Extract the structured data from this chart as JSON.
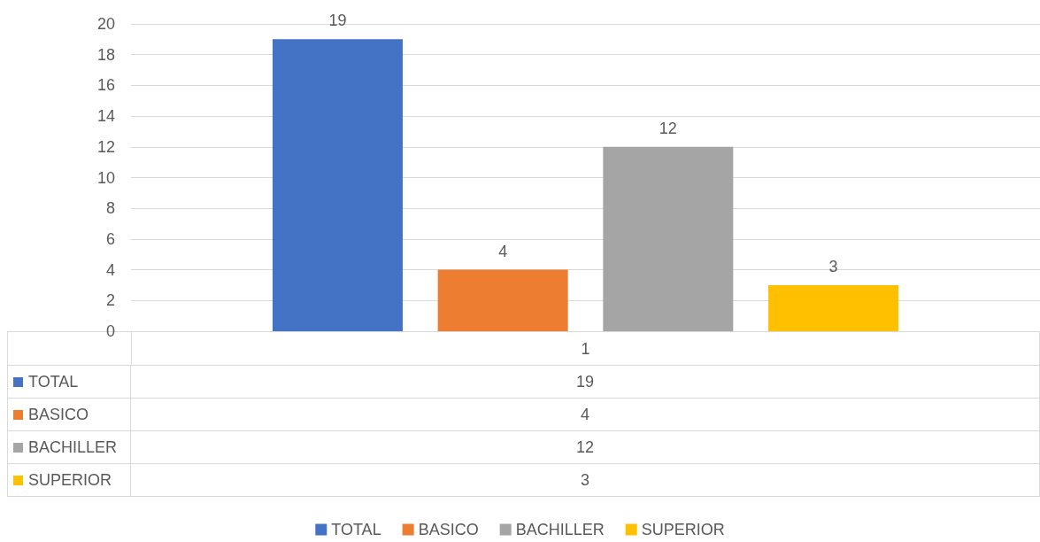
{
  "chart_data": {
    "type": "bar",
    "categories": [
      "1"
    ],
    "series": [
      {
        "name": "TOTAL",
        "color": "#4472c4",
        "values": [
          19
        ],
        "value_labels": [
          "19"
        ]
      },
      {
        "name": "BASICO",
        "color": "#ed7d31",
        "values": [
          4
        ],
        "value_labels": [
          "4"
        ]
      },
      {
        "name": "BACHILLER",
        "color": "#a5a5a5",
        "values": [
          12
        ],
        "value_labels": [
          "12"
        ]
      },
      {
        "name": "SUPERIOR",
        "color": "#ffc000",
        "values": [
          3
        ],
        "value_labels": [
          "3"
        ]
      }
    ],
    "ylim": [
      0,
      20
    ],
    "yticks": [
      0,
      2,
      4,
      6,
      8,
      10,
      12,
      14,
      16,
      18,
      20
    ],
    "grid": true,
    "legend": "bottom",
    "data_labels": true
  }
}
